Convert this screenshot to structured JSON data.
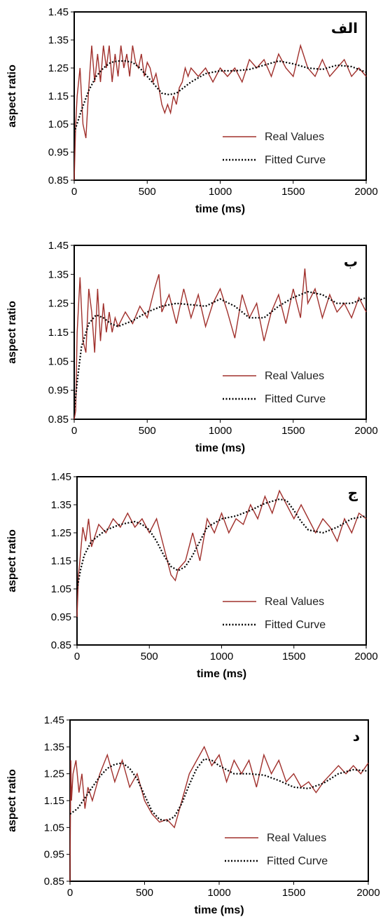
{
  "chart_data": [
    {
      "type": "line",
      "panel_label": "الف",
      "xlabel": "time (ms)",
      "ylabel": "aspect ratio",
      "xlim": [
        0,
        2000
      ],
      "ylim": [
        0.85,
        1.45
      ],
      "x_ticks": [
        0,
        500,
        1000,
        1500,
        2000
      ],
      "y_ticks": [
        0.85,
        0.95,
        1.05,
        1.15,
        1.25,
        1.35,
        1.45
      ],
      "y_tick_labels": [
        "0.85",
        "0.95",
        "1.05",
        "1.15",
        "1.25",
        "1.35",
        "1.45"
      ],
      "legend": [
        "Real Values",
        "Fitted Curve"
      ],
      "legend_position": "bottom-right",
      "series": [
        {
          "name": "Real Values",
          "style": "solid",
          "color": "#a0302c",
          "x": [
            0,
            10,
            20,
            40,
            60,
            80,
            100,
            120,
            140,
            160,
            180,
            200,
            220,
            240,
            260,
            280,
            300,
            320,
            340,
            360,
            380,
            400,
            420,
            440,
            460,
            480,
            500,
            520,
            540,
            560,
            580,
            600,
            620,
            640,
            660,
            680,
            700,
            720,
            740,
            760,
            780,
            800,
            850,
            900,
            950,
            1000,
            1050,
            1100,
            1150,
            1200,
            1250,
            1300,
            1350,
            1400,
            1450,
            1500,
            1550,
            1600,
            1650,
            1700,
            1750,
            1800,
            1850,
            1900,
            1950,
            2000
          ],
          "y": [
            0.85,
            1.05,
            1.15,
            1.25,
            1.05,
            1.0,
            1.18,
            1.33,
            1.2,
            1.3,
            1.2,
            1.33,
            1.25,
            1.33,
            1.2,
            1.3,
            1.22,
            1.33,
            1.25,
            1.3,
            1.22,
            1.33,
            1.27,
            1.25,
            1.3,
            1.22,
            1.27,
            1.25,
            1.2,
            1.23,
            1.18,
            1.12,
            1.09,
            1.12,
            1.09,
            1.15,
            1.12,
            1.18,
            1.2,
            1.25,
            1.22,
            1.25,
            1.22,
            1.25,
            1.2,
            1.25,
            1.22,
            1.25,
            1.2,
            1.28,
            1.25,
            1.28,
            1.22,
            1.3,
            1.25,
            1.22,
            1.33,
            1.25,
            1.22,
            1.28,
            1.22,
            1.25,
            1.28,
            1.22,
            1.25,
            1.22
          ]
        },
        {
          "name": "Fitted Curve",
          "style": "dotted",
          "color": "#000000",
          "x": [
            0,
            25,
            50,
            100,
            150,
            200,
            250,
            300,
            350,
            400,
            450,
            500,
            550,
            600,
            650,
            700,
            750,
            800,
            900,
            1000,
            1100,
            1200,
            1300,
            1400,
            1500,
            1600,
            1700,
            1800,
            1900,
            2000
          ],
          "y": [
            1.02,
            1.06,
            1.1,
            1.17,
            1.22,
            1.25,
            1.27,
            1.275,
            1.275,
            1.27,
            1.25,
            1.22,
            1.19,
            1.16,
            1.155,
            1.16,
            1.18,
            1.2,
            1.23,
            1.24,
            1.24,
            1.245,
            1.26,
            1.275,
            1.265,
            1.25,
            1.245,
            1.26,
            1.255,
            1.235
          ]
        }
      ]
    },
    {
      "type": "line",
      "panel_label": "ب",
      "xlabel": "time (ms)",
      "ylabel": "aspect ratio",
      "xlim": [
        0,
        2000
      ],
      "ylim": [
        0.85,
        1.45
      ],
      "x_ticks": [
        0,
        500,
        1000,
        1500,
        2000
      ],
      "y_ticks": [
        0.85,
        0.95,
        1.05,
        1.15,
        1.25,
        1.35,
        1.45
      ],
      "y_tick_labels": [
        "0.85",
        "0.95",
        "1.05",
        "1.15",
        "1.25",
        "1.35",
        "1.45"
      ],
      "legend": [
        "Real Values",
        "Fitted Curve"
      ],
      "legend_position": "bottom-right",
      "series": [
        {
          "name": "Real Values",
          "style": "solid",
          "color": "#a0302c",
          "x": [
            0,
            10,
            20,
            40,
            60,
            80,
            100,
            120,
            140,
            160,
            180,
            200,
            220,
            240,
            260,
            280,
            300,
            350,
            400,
            450,
            500,
            550,
            580,
            600,
            650,
            700,
            750,
            800,
            850,
            900,
            950,
            1000,
            1050,
            1100,
            1150,
            1200,
            1250,
            1300,
            1350,
            1400,
            1450,
            1500,
            1550,
            1580,
            1600,
            1650,
            1700,
            1750,
            1800,
            1850,
            1900,
            1950,
            2000
          ],
          "y": [
            0.85,
            0.88,
            1.15,
            1.34,
            1.12,
            1.08,
            1.3,
            1.22,
            1.08,
            1.3,
            1.12,
            1.25,
            1.15,
            1.22,
            1.15,
            1.2,
            1.17,
            1.22,
            1.18,
            1.24,
            1.2,
            1.3,
            1.35,
            1.22,
            1.28,
            1.18,
            1.3,
            1.2,
            1.28,
            1.17,
            1.25,
            1.3,
            1.22,
            1.13,
            1.28,
            1.2,
            1.25,
            1.12,
            1.22,
            1.28,
            1.18,
            1.3,
            1.2,
            1.37,
            1.25,
            1.3,
            1.2,
            1.28,
            1.22,
            1.25,
            1.2,
            1.27,
            1.22
          ]
        },
        {
          "name": "Fitted Curve",
          "style": "dotted",
          "color": "#000000",
          "x": [
            0,
            25,
            50,
            100,
            150,
            200,
            250,
            300,
            400,
            500,
            600,
            700,
            800,
            900,
            1000,
            1100,
            1200,
            1300,
            1400,
            1500,
            1600,
            1700,
            1800,
            1900,
            2000
          ],
          "y": [
            0.88,
            1.0,
            1.1,
            1.18,
            1.21,
            1.2,
            1.18,
            1.17,
            1.19,
            1.22,
            1.24,
            1.25,
            1.245,
            1.24,
            1.265,
            1.24,
            1.2,
            1.2,
            1.24,
            1.27,
            1.29,
            1.28,
            1.25,
            1.25,
            1.27
          ]
        }
      ]
    },
    {
      "type": "line",
      "panel_label": "ج",
      "xlabel": "time (ms)",
      "ylabel": "aspect ratio",
      "xlim": [
        0,
        2000
      ],
      "ylim": [
        0.85,
        1.45
      ],
      "x_ticks": [
        0,
        500,
        1000,
        1500,
        2000
      ],
      "y_ticks": [
        0.85,
        0.95,
        1.05,
        1.15,
        1.25,
        1.35,
        1.45
      ],
      "y_tick_labels": [
        "0.85",
        "0.95",
        "1.05",
        "1.15",
        "1.25",
        "1.35",
        "1.45"
      ],
      "legend": [
        "Real Values",
        "Fitted Curve"
      ],
      "legend_position": "bottom-right",
      "series": [
        {
          "name": "Real Values",
          "style": "solid",
          "color": "#a0302c",
          "x": [
            0,
            10,
            20,
            40,
            60,
            80,
            100,
            150,
            200,
            250,
            300,
            350,
            400,
            450,
            500,
            550,
            600,
            650,
            680,
            700,
            750,
            800,
            850,
            900,
            950,
            1000,
            1050,
            1100,
            1150,
            1200,
            1250,
            1300,
            1350,
            1400,
            1450,
            1500,
            1550,
            1600,
            1650,
            1700,
            1750,
            1800,
            1850,
            1900,
            1950,
            2000
          ],
          "y": [
            0.95,
            1.1,
            1.15,
            1.27,
            1.22,
            1.3,
            1.2,
            1.28,
            1.25,
            1.3,
            1.27,
            1.32,
            1.27,
            1.3,
            1.25,
            1.3,
            1.2,
            1.1,
            1.08,
            1.12,
            1.15,
            1.25,
            1.15,
            1.3,
            1.25,
            1.32,
            1.25,
            1.3,
            1.28,
            1.35,
            1.3,
            1.38,
            1.32,
            1.4,
            1.35,
            1.3,
            1.35,
            1.3,
            1.25,
            1.3,
            1.27,
            1.22,
            1.3,
            1.25,
            1.32,
            1.3
          ]
        },
        {
          "name": "Fitted Curve",
          "style": "dotted",
          "color": "#000000",
          "x": [
            0,
            25,
            50,
            100,
            150,
            200,
            300,
            400,
            450,
            500,
            550,
            600,
            650,
            700,
            750,
            800,
            850,
            900,
            1000,
            1100,
            1200,
            1300,
            1400,
            1450,
            1500,
            1550,
            1600,
            1700,
            1800,
            1900,
            2000
          ],
          "y": [
            1.05,
            1.12,
            1.17,
            1.22,
            1.24,
            1.26,
            1.28,
            1.29,
            1.28,
            1.26,
            1.22,
            1.17,
            1.13,
            1.115,
            1.13,
            1.17,
            1.22,
            1.27,
            1.3,
            1.31,
            1.33,
            1.355,
            1.37,
            1.365,
            1.33,
            1.29,
            1.26,
            1.25,
            1.27,
            1.3,
            1.31
          ]
        }
      ]
    },
    {
      "type": "line",
      "panel_label": "د",
      "xlabel": "time (ms)",
      "ylabel": "aspect ratio",
      "xlim": [
        0,
        2000
      ],
      "ylim": [
        0.85,
        1.45
      ],
      "x_ticks": [
        0,
        500,
        1000,
        1500,
        2000
      ],
      "y_ticks": [
        0.85,
        0.95,
        1.05,
        1.15,
        1.25,
        1.35,
        1.45
      ],
      "y_tick_labels": [
        "0.85",
        "0.95",
        "1.05",
        "1.15",
        "1.25",
        "1.35",
        "1.45"
      ],
      "legend": [
        "Real Values",
        "Fitted Curve"
      ],
      "legend_position": "bottom-right",
      "series": [
        {
          "name": "Real Values",
          "style": "solid",
          "color": "#a0302c",
          "x": [
            0,
            5,
            10,
            20,
            40,
            60,
            80,
            100,
            120,
            150,
            200,
            250,
            300,
            350,
            400,
            450,
            500,
            550,
            600,
            650,
            700,
            750,
            800,
            850,
            900,
            950,
            1000,
            1050,
            1100,
            1150,
            1200,
            1250,
            1300,
            1350,
            1400,
            1450,
            1500,
            1550,
            1600,
            1650,
            1700,
            1750,
            1800,
            1850,
            1900,
            1950,
            2000
          ],
          "y": [
            0.85,
            1.3,
            1.15,
            1.25,
            1.3,
            1.18,
            1.25,
            1.12,
            1.2,
            1.15,
            1.25,
            1.32,
            1.22,
            1.3,
            1.2,
            1.25,
            1.15,
            1.1,
            1.07,
            1.08,
            1.05,
            1.15,
            1.25,
            1.3,
            1.35,
            1.28,
            1.32,
            1.22,
            1.3,
            1.25,
            1.3,
            1.2,
            1.32,
            1.25,
            1.3,
            1.22,
            1.25,
            1.2,
            1.22,
            1.18,
            1.22,
            1.25,
            1.28,
            1.25,
            1.28,
            1.25,
            1.29
          ]
        },
        {
          "name": "Fitted Curve",
          "style": "dotted",
          "color": "#000000",
          "x": [
            0,
            50,
            100,
            150,
            200,
            250,
            300,
            350,
            400,
            450,
            500,
            550,
            600,
            650,
            700,
            750,
            800,
            850,
            900,
            950,
            1000,
            1100,
            1200,
            1300,
            1400,
            1500,
            1600,
            1700,
            1800,
            1900,
            2000
          ],
          "y": [
            1.1,
            1.12,
            1.16,
            1.2,
            1.24,
            1.27,
            1.285,
            1.29,
            1.27,
            1.23,
            1.17,
            1.11,
            1.08,
            1.075,
            1.09,
            1.14,
            1.21,
            1.27,
            1.305,
            1.3,
            1.28,
            1.25,
            1.25,
            1.245,
            1.225,
            1.2,
            1.195,
            1.215,
            1.25,
            1.265,
            1.26
          ]
        }
      ]
    }
  ]
}
